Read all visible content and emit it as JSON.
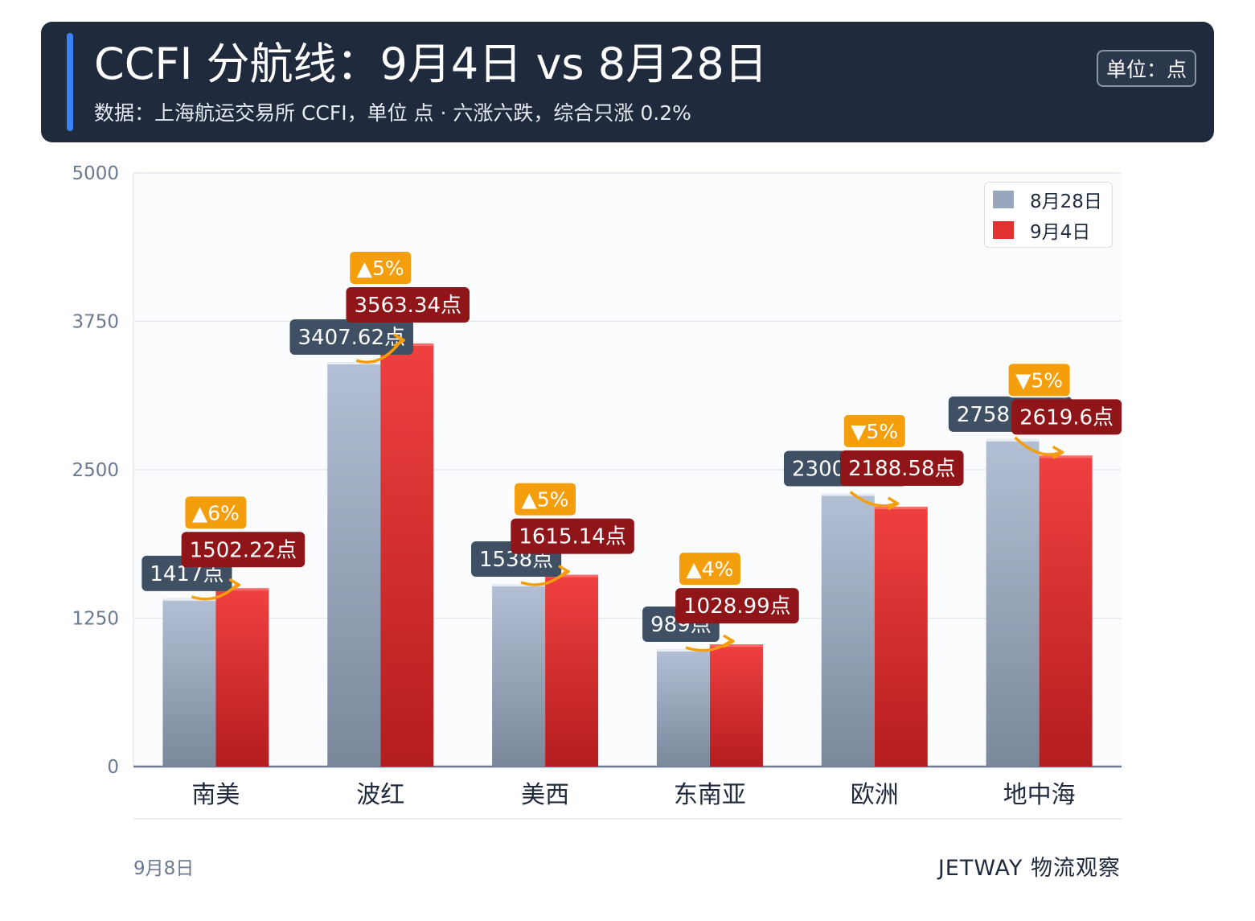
{
  "header": {
    "title": "CCFI 分航线：9月4日 vs 8月28日",
    "subtitle": "数据：上海航运交易所 CCFI，单位 点 · 六涨六跌，综合只涨 0.2%",
    "unit_badge": "单位：点"
  },
  "footer": {
    "date": "9月8日",
    "brand": "JETWAY 物流观察"
  },
  "colors": {
    "header_bg": "#1f2a3d",
    "accent": "#3b82f6",
    "prev_bar": "#9aa6bd",
    "curr_bar": "#e23131",
    "prev_label_bg": "#3f5065",
    "curr_label_bg": "#8f1518",
    "change_badge": "#f59e0b"
  },
  "chart_data": {
    "type": "bar",
    "categories": [
      "南美",
      "波红",
      "美西",
      "东南亚",
      "欧洲",
      "地中海"
    ],
    "series": [
      {
        "name": "8月28日",
        "values": [
          1417,
          3407.62,
          1538,
          989,
          2300.04,
          2758.59
        ]
      },
      {
        "name": "9月4日",
        "values": [
          1502.22,
          3563.34,
          1615.14,
          1028.99,
          2188.58,
          2619.6
        ]
      }
    ],
    "value_labels": {
      "prev": [
        "1417点",
        "3407.62点",
        "1538点",
        "989点",
        "2300.04点",
        "2758.59点"
      ],
      "curr": [
        "1502.22点",
        "3563.34点",
        "1615.14点",
        "1028.99点",
        "2188.58点",
        "2619.6点"
      ]
    },
    "change_labels": [
      "▲6%",
      "▲5%",
      "▲5%",
      "▲4%",
      "▼5%",
      "▼5%"
    ],
    "yticks": [
      0,
      1250,
      2500,
      3750,
      5000
    ],
    "ylim": [
      0,
      5000
    ],
    "grid": true,
    "legend": {
      "position": "top-right",
      "entries": [
        "8月28日",
        "9月4日"
      ]
    },
    "title": "",
    "xlabel": "",
    "ylabel": ""
  }
}
